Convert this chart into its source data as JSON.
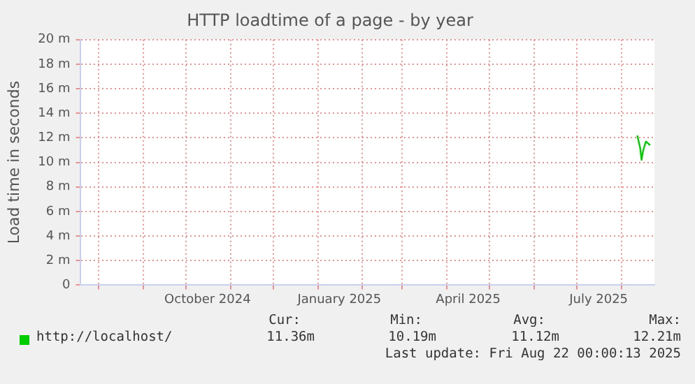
{
  "chart_data": {
    "type": "line",
    "title": "HTTP loadtime of a page - by year",
    "ylabel": "Load time in seconds",
    "x": [
      "2025-08-12",
      "2025-08-14",
      "2025-08-15",
      "2025-08-16",
      "2025-08-18",
      "2025-08-21"
    ],
    "series": [
      {
        "name": "http://localhost/",
        "color": "#00cc00",
        "values": [
          12.2,
          11.2,
          10.2,
          10.9,
          11.7,
          11.4
        ]
      }
    ],
    "xlim": [
      "2024-07-19",
      "2025-08-24"
    ],
    "xticks": [
      {
        "value": "2024-08-01",
        "label": null
      },
      {
        "value": "2024-09-01",
        "label": null
      },
      {
        "value": "2024-10-01",
        "label": null
      },
      {
        "value": "2024-10-16",
        "label": "October 2024"
      },
      {
        "value": "2024-11-01",
        "label": null
      },
      {
        "value": "2024-12-01",
        "label": null
      },
      {
        "value": "2025-01-01",
        "label": null
      },
      {
        "value": "2025-01-16",
        "label": "January 2025"
      },
      {
        "value": "2025-02-01",
        "label": null
      },
      {
        "value": "2025-03-01",
        "label": null
      },
      {
        "value": "2025-04-01",
        "label": null
      },
      {
        "value": "2025-04-16",
        "label": "April 2025"
      },
      {
        "value": "2025-05-01",
        "label": null
      },
      {
        "value": "2025-06-01",
        "label": null
      },
      {
        "value": "2025-07-01",
        "label": null
      },
      {
        "value": "2025-07-16",
        "label": "July 2025"
      },
      {
        "value": "2025-08-01",
        "label": null
      }
    ],
    "ylim": [
      0,
      20
    ],
    "yticks": [
      0,
      {
        "value": 2,
        "label": "2 m"
      },
      {
        "value": 4,
        "label": "4 m"
      },
      {
        "value": 6,
        "label": "6 m"
      },
      {
        "value": 8,
        "label": "8 m"
      },
      {
        "value": 10,
        "label": "10 m"
      },
      {
        "value": 12,
        "label": "12 m"
      },
      {
        "value": 14,
        "label": "14 m"
      },
      {
        "value": 16,
        "label": "16 m"
      },
      {
        "value": 18,
        "label": "18 m"
      },
      {
        "value": 20,
        "label": "20 m"
      }
    ],
    "grid": true,
    "legend": "bottom",
    "marker": "none",
    "line_style": "solid",
    "annotations": [
      "Cur:",
      "Min:",
      "Avg:",
      "Max:",
      "11.36m",
      "10.19m",
      "11.12m",
      "12.21m",
      "Last update: Fri Aug 22 00:00:13 2025"
    ]
  }
}
